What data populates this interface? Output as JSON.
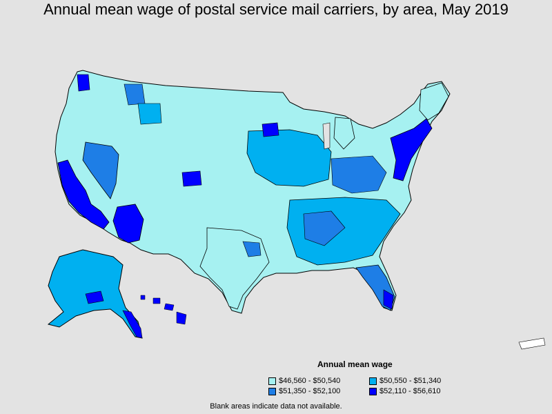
{
  "title": "Annual mean wage of postal service mail carriers, by area, May 2019",
  "legend": {
    "title": "Annual mean wage",
    "items": [
      {
        "label": "$46,560 - $50,540",
        "color": "#a6f1f1"
      },
      {
        "label": "$50,550 - $51,340",
        "color": "#00b0f0"
      },
      {
        "label": "$51,350 - $52,100",
        "color": "#1e7ee6"
      },
      {
        "label": "$52,110 - $56,610",
        "color": "#0000ff"
      }
    ]
  },
  "footnote": "Blank areas indicate data not available."
}
